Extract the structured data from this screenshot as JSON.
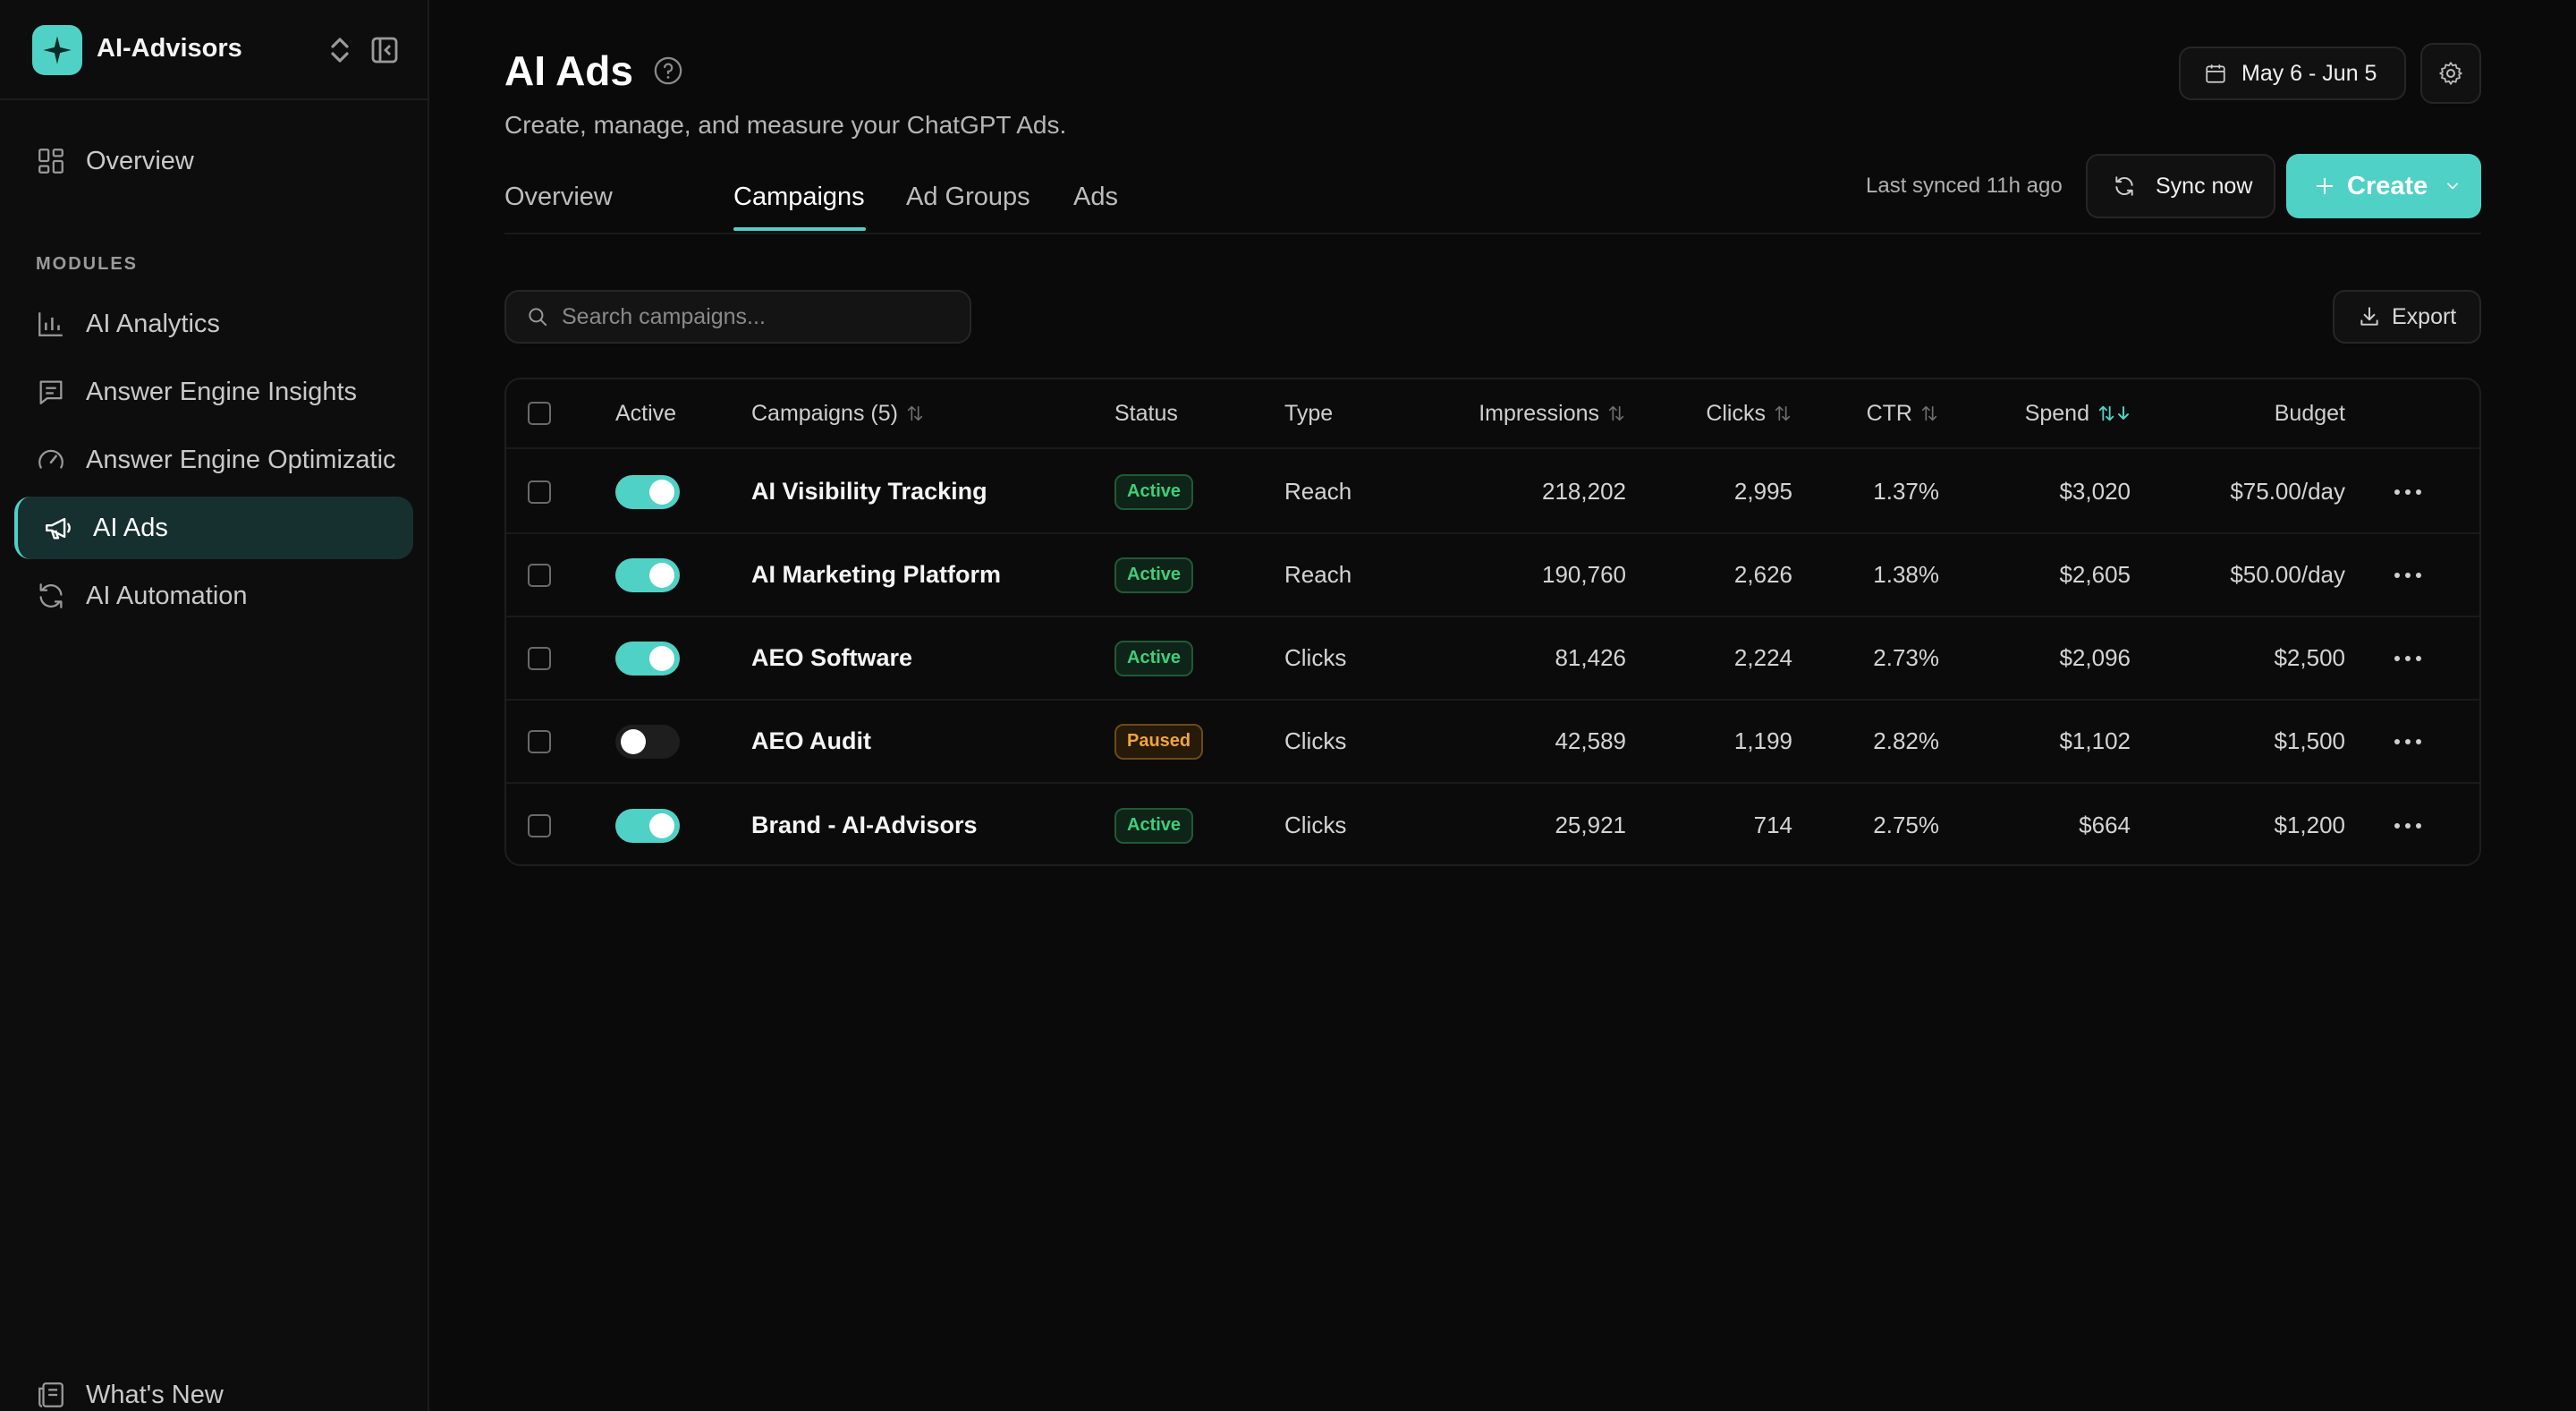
{
  "workspace": {
    "name": "AI-Advisors"
  },
  "sidebar": {
    "top_item": {
      "label": "Overview",
      "icon": "dashboard-icon"
    },
    "section_label": "MODULES",
    "items": [
      {
        "label": "AI Analytics",
        "icon": "bar-chart-icon"
      },
      {
        "label": "Answer Engine Insights",
        "icon": "message-lines-icon"
      },
      {
        "label": "Answer Engine Optimizatic",
        "icon": "gauge-icon"
      },
      {
        "label": "AI Ads",
        "icon": "megaphone-icon",
        "active": true
      },
      {
        "label": "AI Automation",
        "icon": "refresh-icon"
      }
    ],
    "footer_item": {
      "label": "What's New",
      "icon": "newspaper-icon"
    }
  },
  "header": {
    "title": "AI Ads",
    "subtitle": "Create, manage, and measure your ChatGPT Ads.",
    "date_range": "May 6 - Jun 5"
  },
  "tabs": [
    {
      "label": "Overview"
    },
    {
      "label": "Campaigns",
      "active": true
    },
    {
      "label": "Ad Groups"
    },
    {
      "label": "Ads"
    }
  ],
  "sync": {
    "last_synced": "Last synced 11h ago",
    "button": "Sync now"
  },
  "create_button": "Create",
  "search": {
    "placeholder": "Search campaigns..."
  },
  "export_button": "Export",
  "table": {
    "headers": {
      "active": "Active",
      "campaigns": "Campaigns (5)",
      "status": "Status",
      "type": "Type",
      "impressions": "Impressions",
      "clicks": "Clicks",
      "ctr": "CTR",
      "spend": "Spend",
      "budget": "Budget"
    },
    "rows": [
      {
        "enabled": true,
        "name": "AI Visibility Tracking",
        "status": "Active",
        "type": "Reach",
        "impressions": "218,202",
        "clicks": "2,995",
        "ctr": "1.37%",
        "spend": "$3,020",
        "budget": "$75.00/day"
      },
      {
        "enabled": true,
        "name": "AI Marketing Platform",
        "status": "Active",
        "type": "Reach",
        "impressions": "190,760",
        "clicks": "2,626",
        "ctr": "1.38%",
        "spend": "$2,605",
        "budget": "$50.00/day"
      },
      {
        "enabled": true,
        "name": "AEO Software",
        "status": "Active",
        "type": "Clicks",
        "impressions": "81,426",
        "clicks": "2,224",
        "ctr": "2.73%",
        "spend": "$2,096",
        "budget": "$2,500"
      },
      {
        "enabled": false,
        "name": "AEO Audit",
        "status": "Paused",
        "type": "Clicks",
        "impressions": "42,589",
        "clicks": "1,199",
        "ctr": "2.82%",
        "spend": "$1,102",
        "budget": "$1,500"
      },
      {
        "enabled": true,
        "name": "Brand - AI-Advisors",
        "status": "Active",
        "type": "Clicks",
        "impressions": "25,921",
        "clicks": "714",
        "ctr": "2.75%",
        "spend": "$664",
        "budget": "$1,200"
      }
    ]
  },
  "colors": {
    "accent": "#4fd1c5",
    "active_status": "#3ecf7a",
    "paused_status": "#f0a53a",
    "background": "#0a0a0a"
  }
}
